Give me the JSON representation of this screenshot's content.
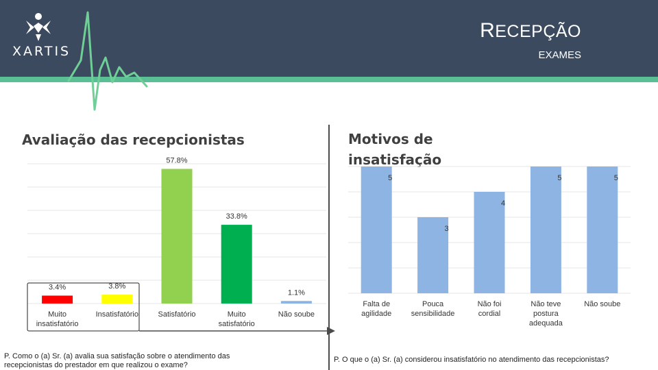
{
  "header": {
    "brand": "XARTIS",
    "title_initial": "R",
    "title_rest": "ECEPÇÃO",
    "subtitle": "EXAMES",
    "colors": {
      "background": "#3b4a5f",
      "stripe": "#5bbf96",
      "heartbeat": "#6fcf97"
    }
  },
  "left": {
    "title": "Avaliação das recepcionistas",
    "question": "P. Como o (a) Sr. (a) avalia sua satisfação sobre o atendimento das recepcionistas do prestador em que realizou o exame?"
  },
  "right": {
    "title": "Motivos de insatisfação",
    "question": "P. O que o (a) Sr. (a) considerou insatisfatório no atendimento das recepcionistas?"
  },
  "chart_data": [
    {
      "type": "bar",
      "title": "Avaliação das recepcionistas",
      "categories": [
        "Muito insatisfatório",
        "Insatisfatório",
        "Satisfatório",
        "Muito satisfatório",
        "Não soube"
      ],
      "values": [
        3.4,
        3.8,
        57.8,
        33.8,
        1.1
      ],
      "value_labels": [
        "3.4%",
        "3.8%",
        "57.8%",
        "33.8%",
        "1.1%"
      ],
      "colors": [
        "#ff0000",
        "#ffff00",
        "#92d050",
        "#00b050",
        "#8db4e2"
      ],
      "ylim": [
        0,
        60
      ],
      "grid": true,
      "highlight": [
        "Muito insatisfatório",
        "Insatisfatório"
      ]
    },
    {
      "type": "bar",
      "title": "Motivos de insatisfação",
      "categories": [
        "Falta de agilidade",
        "Pouca sensibilidade",
        "Não foi cordial",
        "Não teve postura adequada",
        "Não soube"
      ],
      "values": [
        5,
        3,
        4,
        5,
        5
      ],
      "value_labels": [
        "5",
        "3",
        "4",
        "5",
        "5"
      ],
      "color": "#8db4e2",
      "ylim": [
        0,
        5
      ],
      "grid": true
    }
  ]
}
